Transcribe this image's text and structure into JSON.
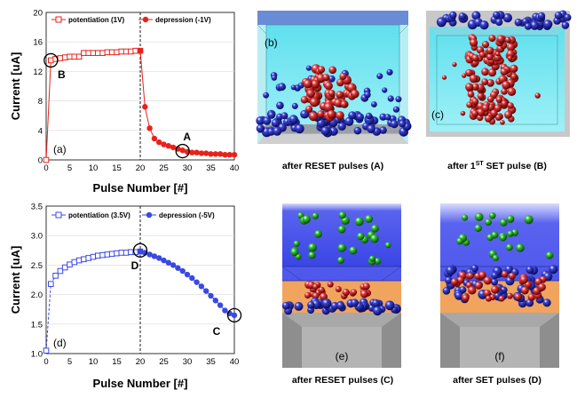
{
  "chart_data": [
    {
      "type": "line",
      "panel": "(a)",
      "xlabel": "Pulse Number [#]",
      "ylabel": "Current [uA]",
      "xlim": [
        0,
        40
      ],
      "ylim": [
        0,
        20
      ],
      "xticks": [
        0,
        5,
        10,
        15,
        20,
        25,
        30,
        35,
        40
      ],
      "yticks": [
        0,
        4,
        8,
        12,
        16,
        20
      ],
      "legend_position": "top",
      "divider_x": 20,
      "series": [
        {
          "name": "potentiation (1V)",
          "color": "#e8221b",
          "marker": "open-square",
          "x": [
            0,
            1,
            2,
            3,
            4,
            5,
            6,
            7,
            8,
            9,
            10,
            11,
            12,
            13,
            14,
            15,
            16,
            17,
            18,
            19,
            20
          ],
          "y": [
            0,
            13.5,
            13.7,
            13.8,
            13.9,
            14.0,
            14.0,
            14.0,
            14.5,
            14.5,
            14.5,
            14.5,
            14.5,
            14.6,
            14.6,
            14.6,
            14.7,
            14.7,
            14.7,
            14.8,
            14.8
          ]
        },
        {
          "name": "depression (-1V)",
          "color": "#e8221b",
          "marker": "filled-circle",
          "x": [
            20,
            21,
            22,
            23,
            24,
            25,
            26,
            27,
            28,
            29,
            30,
            31,
            32,
            33,
            34,
            35,
            36,
            37,
            38,
            39,
            40
          ],
          "y": [
            14.8,
            7.2,
            4.3,
            2.9,
            2.4,
            2.1,
            1.9,
            1.7,
            1.5,
            1.3,
            1.1,
            1.0,
            1.0,
            0.9,
            0.9,
            0.8,
            0.8,
            0.8,
            0.7,
            0.7,
            0.7
          ]
        }
      ],
      "annotations": [
        {
          "label": "B",
          "x": 1,
          "y": 13.5
        },
        {
          "label": "A",
          "x": 29,
          "y": 1.2
        }
      ]
    },
    {
      "type": "line",
      "panel": "(d)",
      "xlabel": "Pulse Number [#]",
      "ylabel": "Current [uA]",
      "xlim": [
        0,
        40
      ],
      "ylim": [
        1.0,
        3.5
      ],
      "xticks": [
        0,
        5,
        10,
        15,
        20,
        25,
        30,
        35,
        40
      ],
      "yticks": [
        1.0,
        1.5,
        2.0,
        2.5,
        3.0,
        3.5
      ],
      "legend_position": "top",
      "divider_x": 20,
      "series": [
        {
          "name": "potentiation (3.5V)",
          "color": "#3a49e0",
          "marker": "open-square",
          "x": [
            0,
            1,
            2,
            3,
            4,
            5,
            6,
            7,
            8,
            9,
            10,
            11,
            12,
            13,
            14,
            15,
            16,
            17,
            18,
            19,
            20
          ],
          "y": [
            1.05,
            2.18,
            2.32,
            2.4,
            2.46,
            2.51,
            2.55,
            2.58,
            2.6,
            2.62,
            2.64,
            2.66,
            2.67,
            2.68,
            2.69,
            2.7,
            2.71,
            2.71,
            2.72,
            2.72,
            2.73
          ]
        },
        {
          "name": "depression (-5V)",
          "color": "#3a49e0",
          "marker": "filled-circle",
          "x": [
            20,
            21,
            22,
            23,
            24,
            25,
            26,
            27,
            28,
            29,
            30,
            31,
            32,
            33,
            34,
            35,
            36,
            37,
            38,
            39,
            40
          ],
          "y": [
            2.73,
            2.71,
            2.68,
            2.65,
            2.62,
            2.58,
            2.54,
            2.5,
            2.45,
            2.4,
            2.34,
            2.28,
            2.21,
            2.14,
            2.06,
            1.98,
            1.9,
            1.82,
            1.73,
            1.68,
            1.65
          ]
        }
      ],
      "annotations": [
        {
          "label": "D",
          "x": 20,
          "y": 2.75
        },
        {
          "label": "C",
          "x": 40,
          "y": 1.65
        }
      ]
    }
  ],
  "images": {
    "b": {
      "panel": "(b)",
      "caption": "after RESET pulses (A)"
    },
    "c": {
      "panel": "(c)",
      "caption_pre": "after 1",
      "caption_sup": "ST",
      "caption_post": " SET pulse (B)"
    },
    "e": {
      "panel": "(e)",
      "caption": "after RESET pulses (C)"
    },
    "f": {
      "panel": "(f)",
      "caption": "after SET pulses (D)"
    }
  }
}
